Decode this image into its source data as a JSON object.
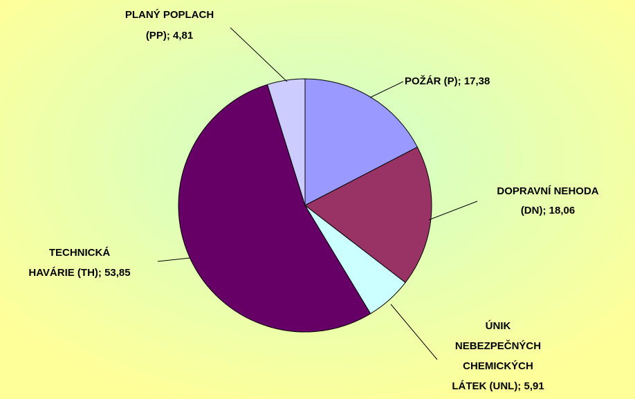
{
  "chart_data": {
    "type": "pie",
    "values": [
      17.38,
      18.06,
      5.91,
      53.85,
      4.81
    ],
    "value_labels": [
      [
        "POŽÁR (P); 17,38"
      ],
      [
        "DOPRAVNÍ NEHODA",
        "(DN); 18,06"
      ],
      [
        "ÚNIK",
        "NEBEZPEČNÝCH",
        "CHEMICKÝCH",
        "LÁTEK (UNL); 5,91"
      ],
      [
        "TECHNICKÁ",
        "HAVÁRIE (TH); 53,85"
      ],
      [
        "PLANÝ POPLACH",
        "(PP); 4,81"
      ]
    ],
    "colors": [
      "#9999ff",
      "#993366",
      "#ccffff",
      "#660066",
      "#ccccff"
    ]
  }
}
